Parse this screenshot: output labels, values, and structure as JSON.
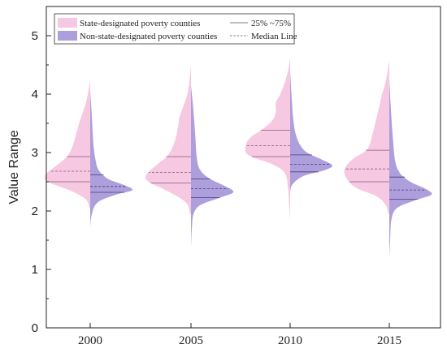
{
  "chart_data": {
    "type": "split-violin",
    "title": "",
    "xlabel": "",
    "ylabel": "Value Range",
    "ylim": [
      0,
      5.5
    ],
    "yticks": [
      0,
      1,
      2,
      3,
      4,
      5
    ],
    "categories": [
      "2000",
      "2005",
      "2010",
      "2015"
    ],
    "grid": false,
    "legend_position": "top-left",
    "series": [
      {
        "name": "State-designated poverty counties",
        "color": "#f7c8e2",
        "side": "left",
        "violins": [
          {
            "min": 2.05,
            "max": 4.25,
            "q1": 2.5,
            "median": 2.68,
            "q3": 2.93,
            "profile": [
              [
                2.05,
                0.02
              ],
              [
                2.2,
                0.1
              ],
              [
                2.35,
                0.45
              ],
              [
                2.5,
                0.95
              ],
              [
                2.62,
                1.0
              ],
              [
                2.75,
                0.8
              ],
              [
                2.93,
                0.52
              ],
              [
                3.1,
                0.4
              ],
              [
                3.3,
                0.32
              ],
              [
                3.5,
                0.25
              ],
              [
                3.7,
                0.16
              ],
              [
                3.9,
                0.08
              ],
              [
                4.1,
                0.03
              ],
              [
                4.25,
                0.0
              ]
            ]
          },
          {
            "min": 1.95,
            "max": 4.5,
            "q1": 2.48,
            "median": 2.66,
            "q3": 2.93,
            "profile": [
              [
                1.95,
                0.02
              ],
              [
                2.15,
                0.12
              ],
              [
                2.35,
                0.55
              ],
              [
                2.5,
                0.95
              ],
              [
                2.62,
                1.0
              ],
              [
                2.8,
                0.75
              ],
              [
                2.95,
                0.52
              ],
              [
                3.15,
                0.38
              ],
              [
                3.4,
                0.3
              ],
              [
                3.6,
                0.26
              ],
              [
                3.8,
                0.17
              ],
              [
                4.0,
                0.08
              ],
              [
                4.25,
                0.03
              ],
              [
                4.5,
                0.0
              ]
            ]
          },
          {
            "min": 1.85,
            "max": 4.62,
            "q1": 2.93,
            "median": 3.12,
            "q3": 3.38,
            "profile": [
              [
                1.85,
                0.0
              ],
              [
                2.1,
                0.02
              ],
              [
                2.4,
                0.05
              ],
              [
                2.65,
                0.12
              ],
              [
                2.8,
                0.4
              ],
              [
                2.95,
                0.92
              ],
              [
                3.1,
                1.0
              ],
              [
                3.25,
                0.9
              ],
              [
                3.4,
                0.62
              ],
              [
                3.55,
                0.4
              ],
              [
                3.7,
                0.32
              ],
              [
                3.85,
                0.32
              ],
              [
                4.0,
                0.22
              ],
              [
                4.2,
                0.12
              ],
              [
                4.4,
                0.05
              ],
              [
                4.62,
                0.0
              ]
            ]
          },
          {
            "min": 1.95,
            "max": 4.58,
            "q1": 2.5,
            "median": 2.72,
            "q3": 3.04,
            "profile": [
              [
                1.95,
                0.02
              ],
              [
                2.1,
                0.08
              ],
              [
                2.25,
                0.28
              ],
              [
                2.4,
                0.75
              ],
              [
                2.55,
                0.95
              ],
              [
                2.72,
                1.0
              ],
              [
                2.9,
                0.8
              ],
              [
                3.05,
                0.5
              ],
              [
                3.3,
                0.38
              ],
              [
                3.55,
                0.3
              ],
              [
                3.8,
                0.22
              ],
              [
                4.0,
                0.16
              ],
              [
                4.25,
                0.07
              ],
              [
                4.58,
                0.0
              ]
            ]
          }
        ]
      },
      {
        "name": "Non-state-designated poverty counties",
        "color": "#ad9fdb",
        "side": "right",
        "violins": [
          {
            "min": 1.72,
            "max": 4.05,
            "q1": 2.32,
            "median": 2.42,
            "q3": 2.62,
            "profile": [
              [
                1.72,
                0.0
              ],
              [
                1.95,
                0.04
              ],
              [
                2.15,
                0.18
              ],
              [
                2.28,
                0.62
              ],
              [
                2.36,
                1.0
              ],
              [
                2.45,
                0.78
              ],
              [
                2.55,
                0.42
              ],
              [
                2.7,
                0.2
              ],
              [
                2.9,
                0.12
              ],
              [
                3.2,
                0.07
              ],
              [
                3.6,
                0.04
              ],
              [
                4.05,
                0.0
              ]
            ]
          },
          {
            "min": 1.37,
            "max": 4.15,
            "q1": 2.23,
            "median": 2.38,
            "q3": 2.55,
            "profile": [
              [
                1.37,
                0.0
              ],
              [
                1.7,
                0.02
              ],
              [
                1.95,
                0.06
              ],
              [
                2.1,
                0.22
              ],
              [
                2.22,
                0.65
              ],
              [
                2.32,
                1.0
              ],
              [
                2.42,
                0.82
              ],
              [
                2.55,
                0.45
              ],
              [
                2.7,
                0.22
              ],
              [
                2.9,
                0.14
              ],
              [
                3.3,
                0.1
              ],
              [
                3.7,
                0.06
              ],
              [
                4.15,
                0.0
              ]
            ]
          },
          {
            "min": 2.3,
            "max": 4.4,
            "q1": 2.67,
            "median": 2.8,
            "q3": 2.96,
            "profile": [
              [
                2.3,
                0.0
              ],
              [
                2.45,
                0.05
              ],
              [
                2.6,
                0.32
              ],
              [
                2.7,
                0.82
              ],
              [
                2.78,
                1.0
              ],
              [
                2.88,
                0.75
              ],
              [
                3.0,
                0.4
              ],
              [
                3.15,
                0.22
              ],
              [
                3.35,
                0.12
              ],
              [
                3.6,
                0.07
              ],
              [
                3.9,
                0.04
              ],
              [
                4.4,
                0.0
              ]
            ]
          },
          {
            "min": 1.22,
            "max": 4.25,
            "q1": 2.2,
            "median": 2.36,
            "q3": 2.58,
            "profile": [
              [
                1.22,
                0.0
              ],
              [
                1.5,
                0.02
              ],
              [
                1.85,
                0.05
              ],
              [
                2.05,
                0.18
              ],
              [
                2.18,
                0.6
              ],
              [
                2.28,
                1.0
              ],
              [
                2.38,
                0.85
              ],
              [
                2.5,
                0.5
              ],
              [
                2.65,
                0.25
              ],
              [
                2.85,
                0.14
              ],
              [
                3.2,
                0.09
              ],
              [
                3.6,
                0.05
              ],
              [
                4.25,
                0.0
              ]
            ]
          }
        ]
      }
    ],
    "line_legend": [
      {
        "label": "25% ~75%",
        "style": "solid"
      },
      {
        "label": "Median Line",
        "style": "dashed"
      }
    ]
  }
}
